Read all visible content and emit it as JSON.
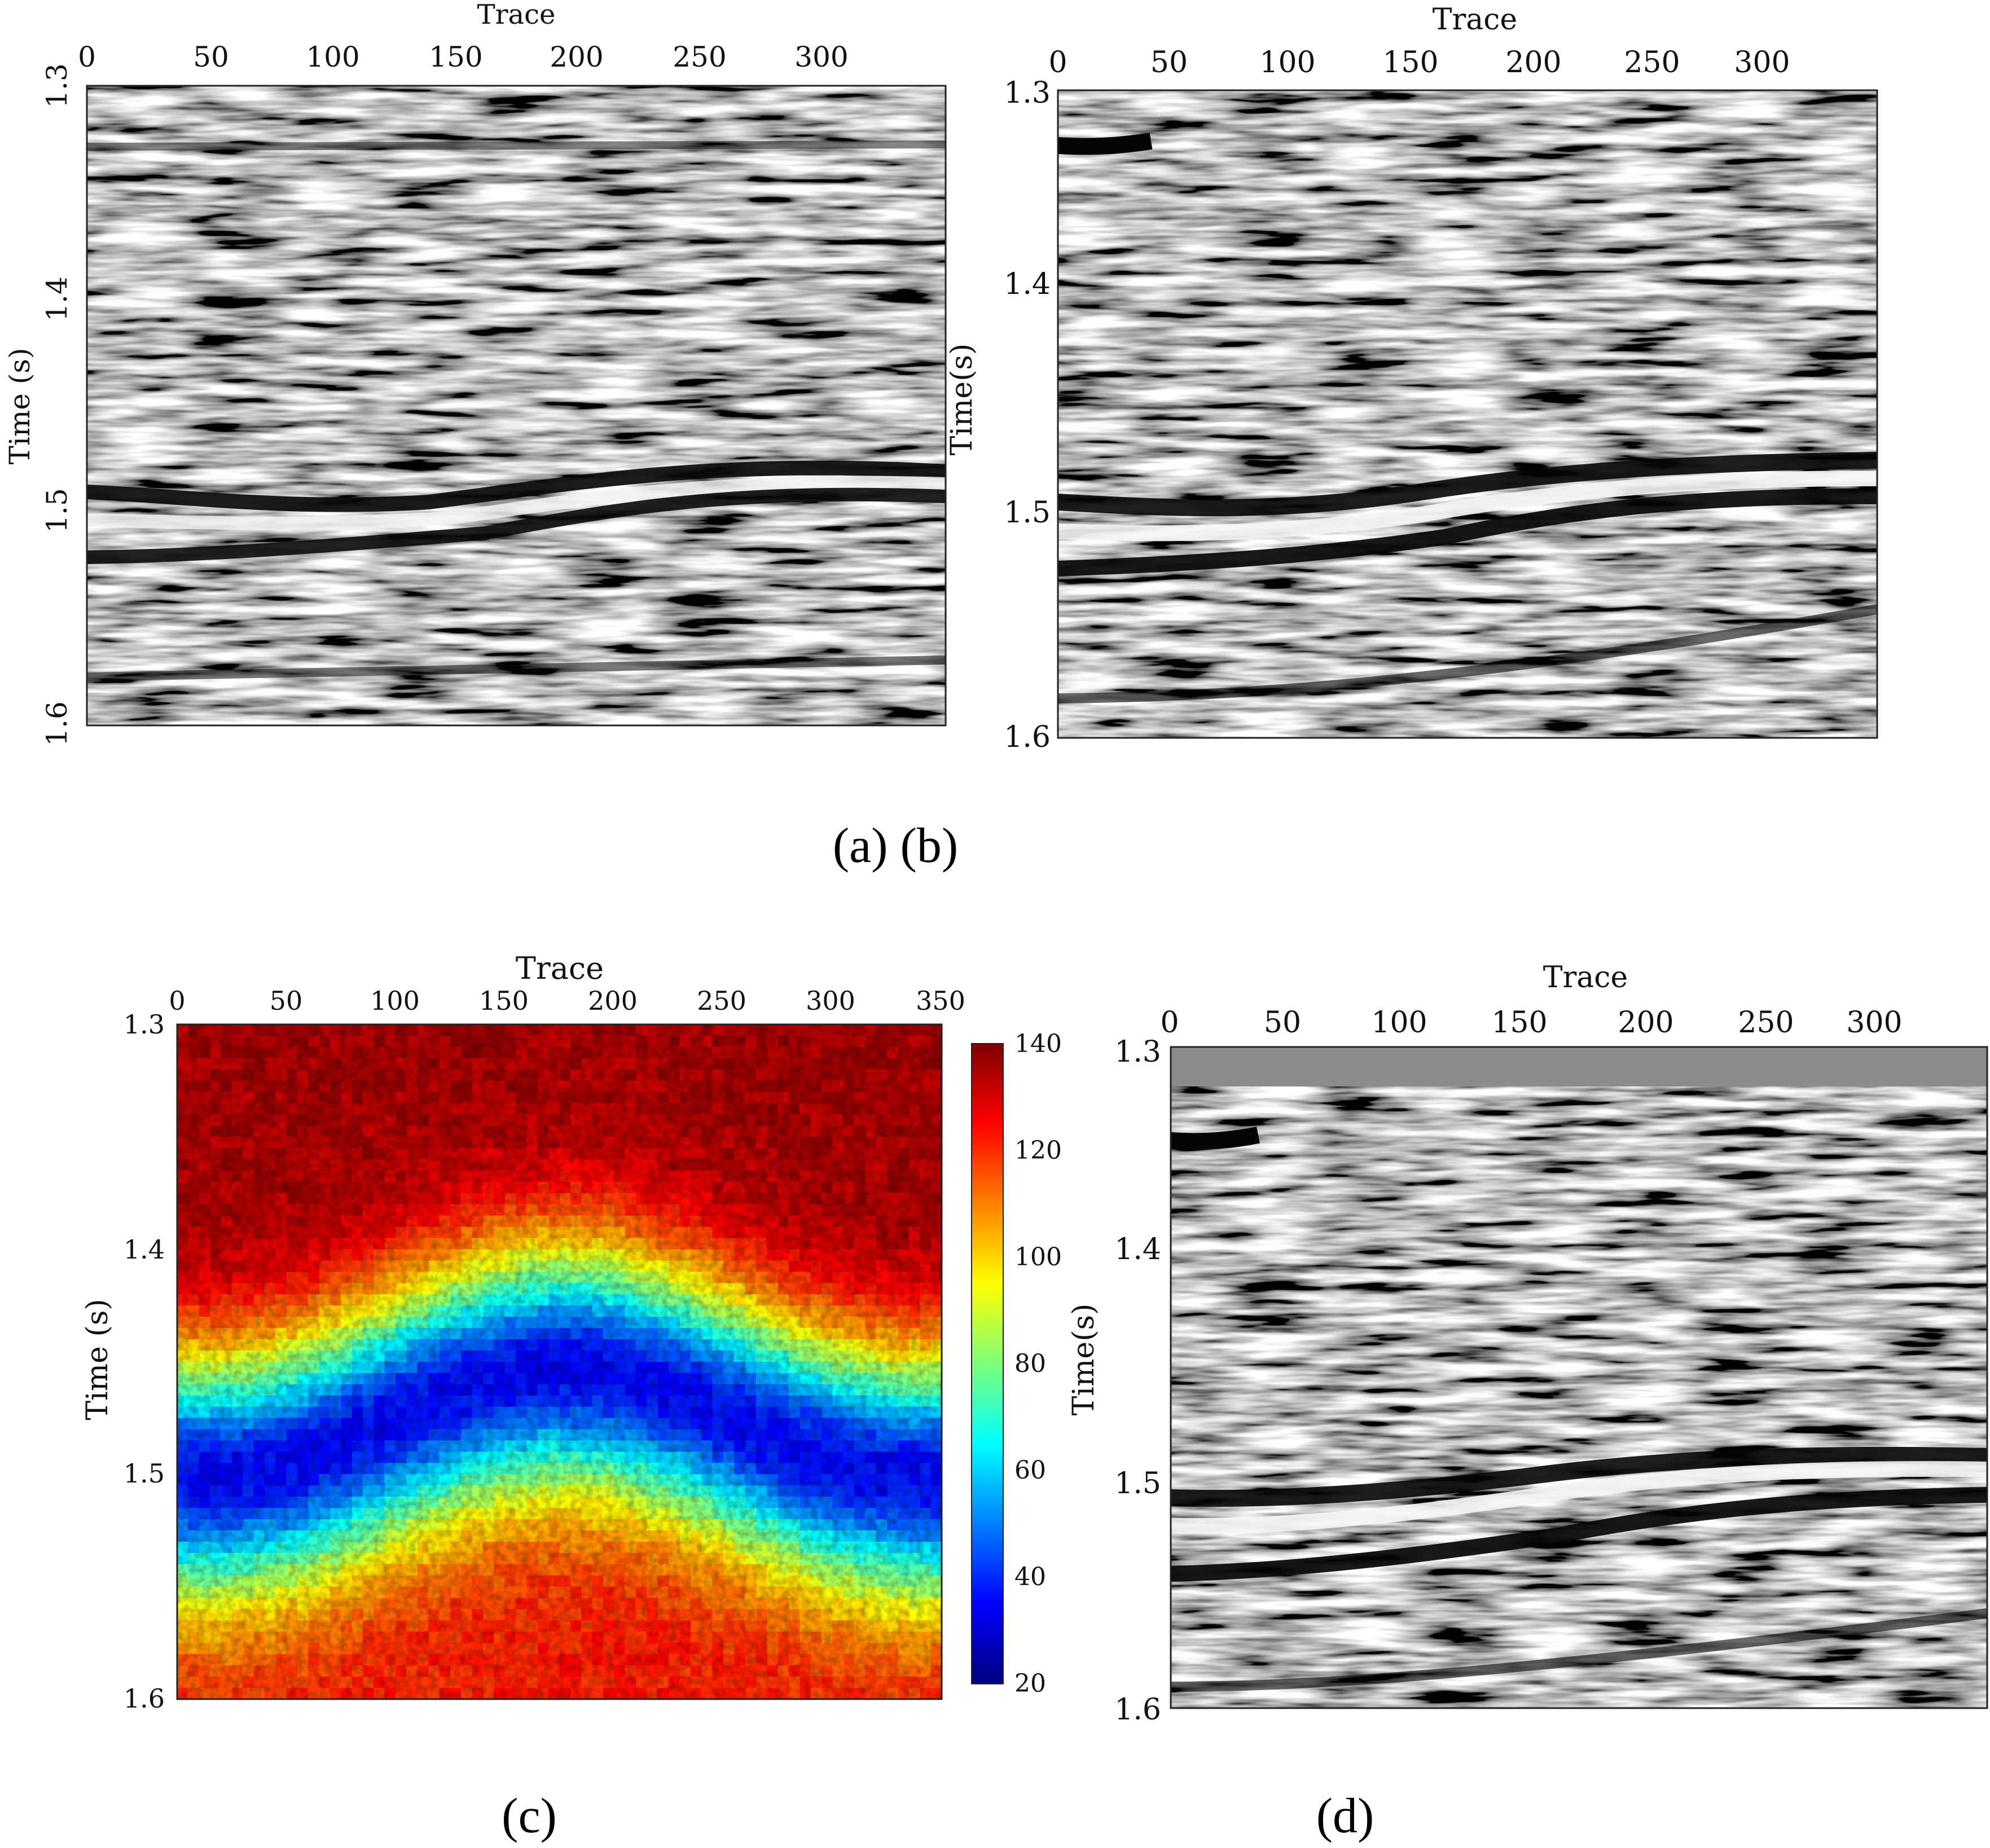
{
  "figure": {
    "caption_ab": "(a) (b)",
    "caption_c": "(c)",
    "caption_d": "(d)"
  },
  "chart_data": [
    {
      "id": "a",
      "type": "heatmap",
      "colormap": "grayscale seismic",
      "xlabel": "Trace",
      "ylabel": "Time (s)",
      "xlim": [
        0,
        350
      ],
      "ylim": [
        1.3,
        1.6
      ],
      "xticks": [
        "0",
        "50",
        "100",
        "150",
        "200",
        "250",
        "300"
      ],
      "yticks": [
        "1.3",
        "1.4",
        "1.5",
        "1.6"
      ],
      "events": [
        {
          "name": "reflector",
          "t_start": 1.495,
          "t_mid": 1.505,
          "t_end": 1.475,
          "polarity": "strong"
        }
      ]
    },
    {
      "id": "b",
      "type": "heatmap",
      "colormap": "grayscale seismic",
      "xlabel": "Trace",
      "ylabel": "Time(s)",
      "xlim": [
        0,
        350
      ],
      "ylim": [
        1.3,
        1.6
      ],
      "xticks": [
        "0",
        "50",
        "100",
        "150",
        "200",
        "250",
        "300"
      ],
      "yticks": [
        "1.3",
        "1.4",
        "1.5",
        "1.6"
      ]
    },
    {
      "id": "c",
      "type": "heatmap",
      "colormap": "jet",
      "xlabel": "Trace",
      "ylabel": "Time (s)",
      "xlim": [
        0,
        350
      ],
      "ylim": [
        1.3,
        1.6
      ],
      "xticks": [
        "0",
        "50",
        "100",
        "150",
        "200",
        "250",
        "300",
        "350"
      ],
      "yticks": [
        "1.3",
        "1.4",
        "1.5",
        "1.6"
      ],
      "colorbar": {
        "min": 20,
        "max": 140,
        "ticks": [
          "140",
          "120",
          "100",
          "80",
          "60",
          "40",
          "20"
        ]
      },
      "band": {
        "center_time_at_trace_0": 1.49,
        "center_time_at_trace_75": 1.5,
        "center_time_at_trace_240": 1.455,
        "center_time_at_trace_350": 1.49,
        "min_value": 35,
        "background_top": 135,
        "background_bottom": 122
      }
    },
    {
      "id": "d",
      "type": "heatmap",
      "colormap": "grayscale seismic",
      "xlabel": "Trace",
      "ylabel": "Time(s)",
      "xlim": [
        0,
        350
      ],
      "ylim": [
        1.3,
        1.6
      ],
      "xticks": [
        "0",
        "50",
        "100",
        "150",
        "200",
        "250",
        "300"
      ],
      "yticks": [
        "1.3",
        "1.4",
        "1.5",
        "1.6"
      ],
      "gap_top": [
        1.3,
        1.317
      ]
    }
  ]
}
